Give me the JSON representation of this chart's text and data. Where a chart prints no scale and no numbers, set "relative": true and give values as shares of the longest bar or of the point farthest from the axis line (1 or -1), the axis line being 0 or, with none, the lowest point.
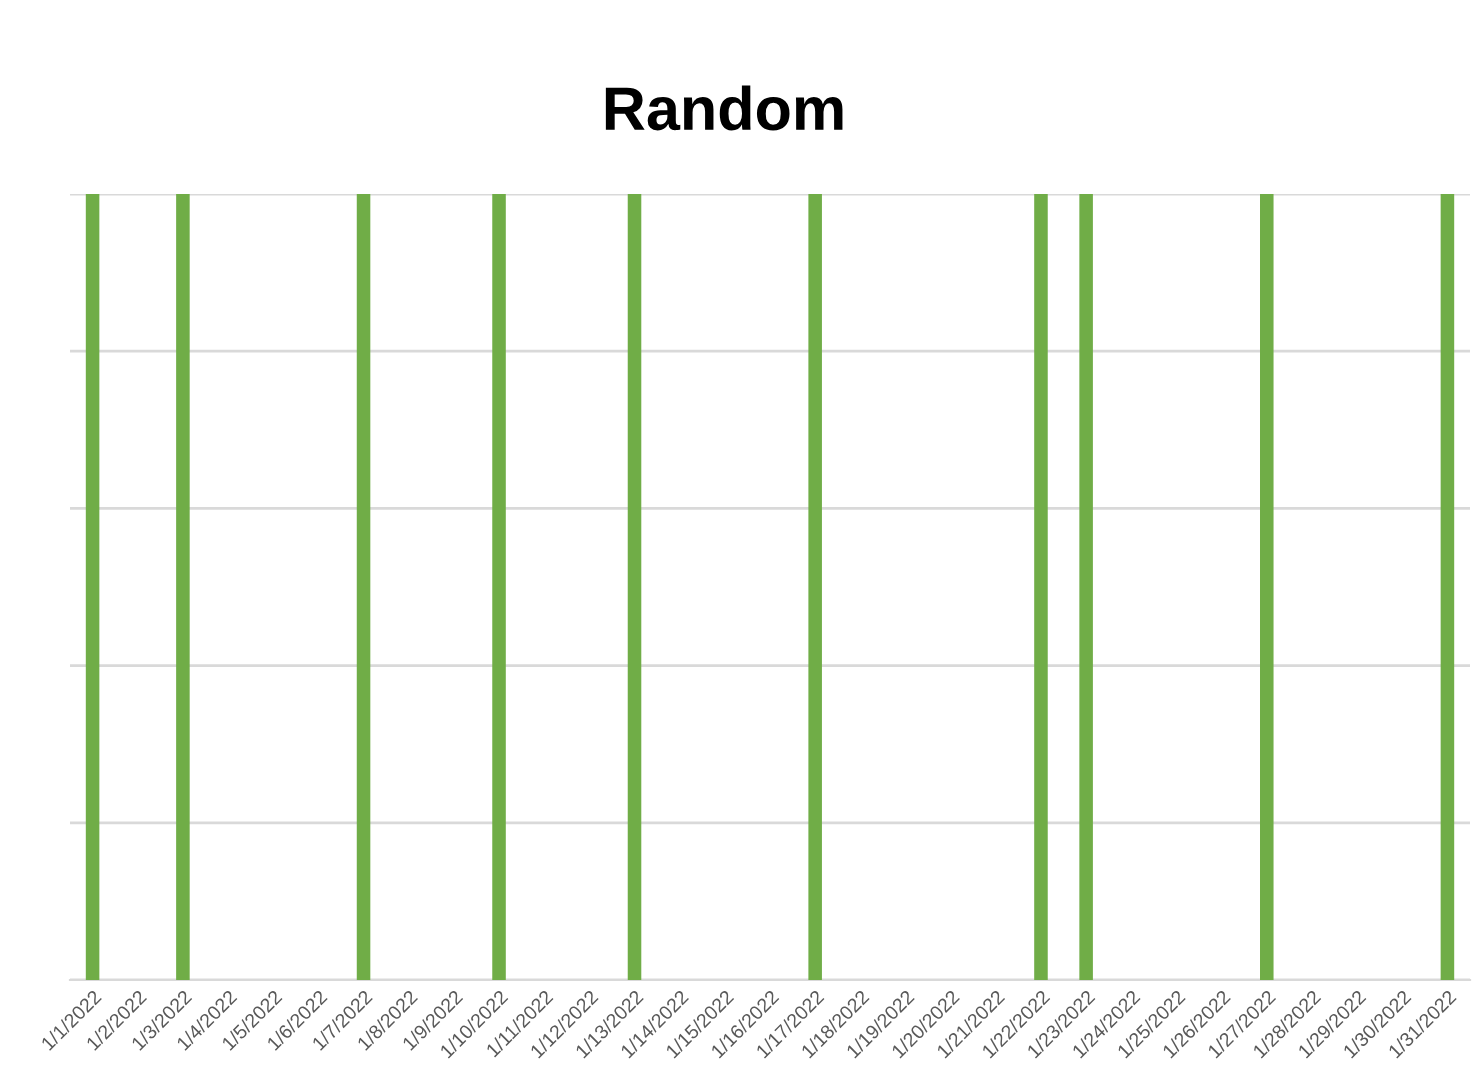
{
  "chart_data": {
    "type": "bar",
    "title": "Random",
    "categories": [
      "1/1/2022",
      "1/2/2022",
      "1/3/2022",
      "1/4/2022",
      "1/5/2022",
      "1/6/2022",
      "1/7/2022",
      "1/8/2022",
      "1/9/2022",
      "1/10/2022",
      "1/11/2022",
      "1/12/2022",
      "1/13/2022",
      "1/14/2022",
      "1/15/2022",
      "1/16/2022",
      "1/17/2022",
      "1/18/2022",
      "1/19/2022",
      "1/20/2022",
      "1/21/2022",
      "1/22/2022",
      "1/23/2022",
      "1/24/2022",
      "1/25/2022",
      "1/26/2022",
      "1/27/2022",
      "1/28/2022",
      "1/29/2022",
      "1/30/2022",
      "1/31/2022"
    ],
    "series": [
      {
        "color": "#70ad47",
        "values": [
          1,
          0,
          1,
          0,
          0,
          0,
          1,
          0,
          0,
          1,
          0,
          0,
          1,
          0,
          0,
          0,
          1,
          0,
          0,
          0,
          0,
          1,
          1,
          0,
          0,
          0,
          1,
          0,
          0,
          0,
          1
        ]
      }
    ],
    "relative": true,
    "grid": "y",
    "legend": false
  }
}
